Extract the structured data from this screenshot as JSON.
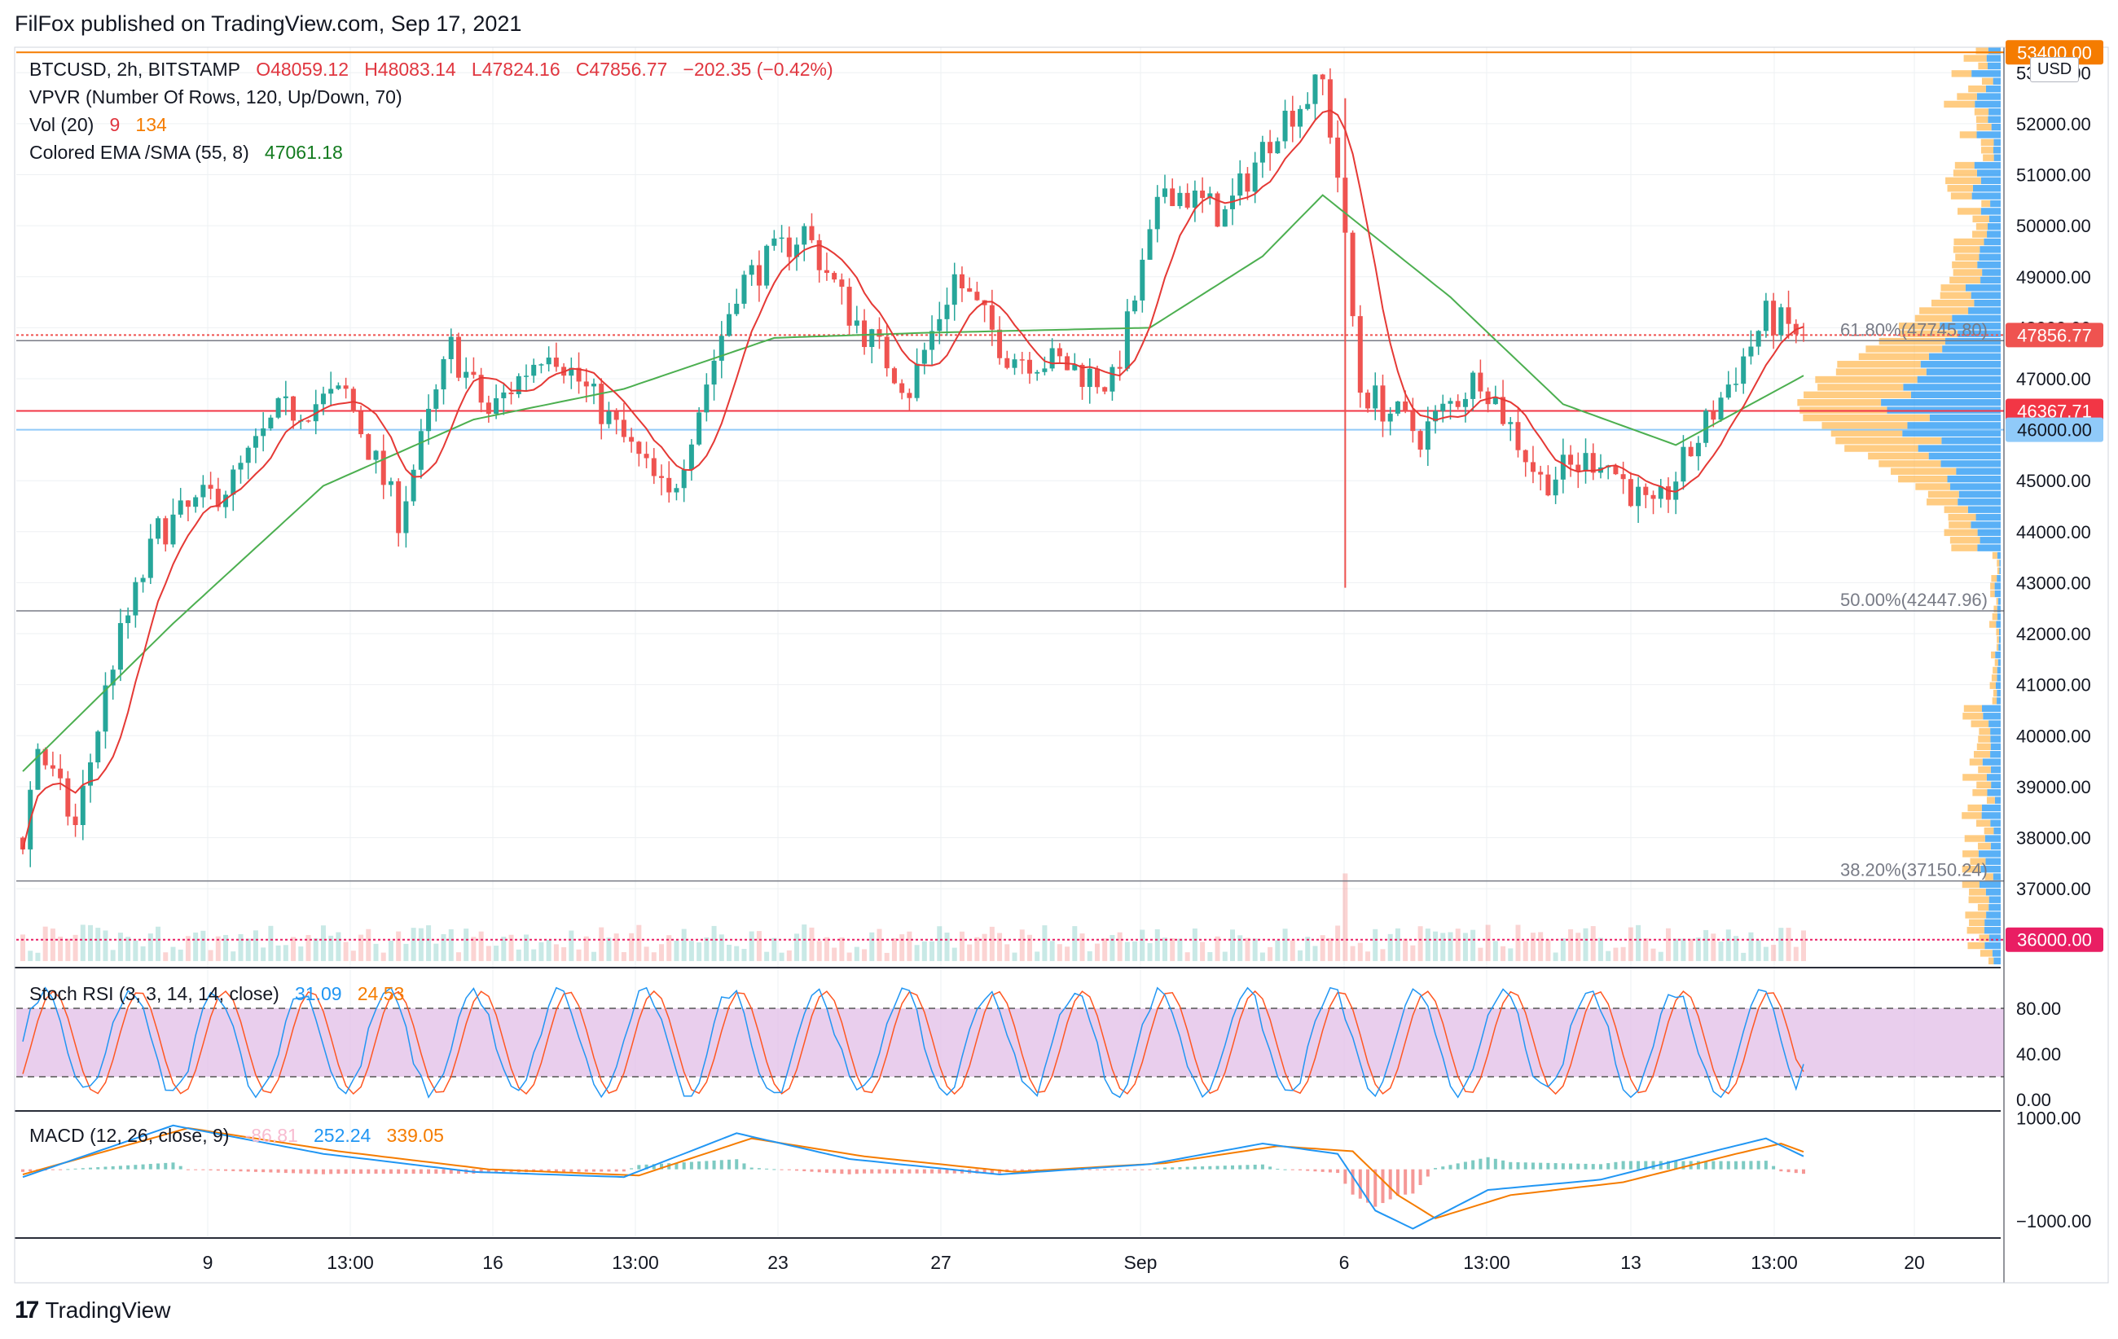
{
  "header": {
    "published": "FilFox published on TradingView.com, Sep 17, 2021"
  },
  "legend": {
    "symbol": "BTCUSD, 2h, BITSTAMP",
    "open": "O48059.12",
    "high": "H48083.14",
    "low": "L47824.16",
    "close": "C47856.77",
    "change": "−202.35 (−0.42%)",
    "vpvr": "VPVR (Number Of Rows, 120, Up/Down, 70)",
    "vol_label": "Vol (20)",
    "vol_a": "9",
    "vol_b": "134",
    "ema_label": "Colored EMA /SMA (55, 8)",
    "ema_value": "47061.18",
    "stoch_label": "Stoch RSI (3, 3, 14, 14, close)",
    "stoch_k": "31.09",
    "stoch_d": "24.53",
    "macd_label": "MACD (12, 26, close, 9)",
    "macd_hist": "-86.81",
    "macd_line": "252.24",
    "macd_signal": "339.05"
  },
  "currency": "USD",
  "brand": "TradingView",
  "colors": {
    "up": "#26a69a",
    "down": "#ef5350",
    "ema": "#4caf50",
    "sma": "#e53935",
    "vpvr_up": "#2196f3",
    "vpvr_down": "#ffb74d",
    "stoch_k": "#2196f3",
    "stoch_d": "#ff5722",
    "stoch_band": "#e1bee7",
    "macd_line": "#2196f3",
    "macd_signal": "#f57c00"
  },
  "chart_data": [
    {
      "type": "candlestick",
      "name": "BTCUSD 2h price",
      "ylim": [
        35500,
        53500
      ],
      "y_ticks": [
        "37000.00",
        "38000.00",
        "39000.00",
        "40000.00",
        "41000.00",
        "42000.00",
        "43000.00",
        "44000.00",
        "45000.00",
        "46000.00",
        "47000.00",
        "48000.00",
        "49000.00",
        "50000.00",
        "51000.00",
        "52000.00",
        "53000.00"
      ],
      "x_ticks": [
        "9",
        "13:00",
        "16",
        "13:00",
        "23",
        "27",
        "Sep",
        "6",
        "13:00",
        "13",
        "13:00",
        "20"
      ],
      "price_labels": [
        {
          "text": "53400.00",
          "value": 53400,
          "color": "#f57c00"
        },
        {
          "text": "47856.77",
          "value": 47856.77,
          "color": "#ef5350"
        },
        {
          "text": "46367.71",
          "value": 46367.71,
          "color": "#f23645"
        },
        {
          "text": "46000.00",
          "value": 46000,
          "color": "#90caf9"
        },
        {
          "text": "36000.00",
          "value": 36000,
          "color": "#e91e63"
        }
      ],
      "fib_levels": [
        {
          "text": "61.80%(47745.80)",
          "value": 47745.8
        },
        {
          "text": "50.00%(42447.96)",
          "value": 42447.96
        },
        {
          "text": "38.20%(37150.24)",
          "value": 37150.24
        }
      ],
      "key_points": [
        {
          "t": 0,
          "price": 38000
        },
        {
          "t": 2,
          "price": 39800
        },
        {
          "t": 7,
          "price": 38200
        },
        {
          "t": 12,
          "price": 41500
        },
        {
          "t": 18,
          "price": 44000
        },
        {
          "t": 28,
          "price": 45000
        },
        {
          "t": 34,
          "price": 46300
        },
        {
          "t": 43,
          "price": 46700
        },
        {
          "t": 50,
          "price": 44300
        },
        {
          "t": 57,
          "price": 47600
        },
        {
          "t": 62,
          "price": 46300
        },
        {
          "t": 70,
          "price": 47700
        },
        {
          "t": 78,
          "price": 46200
        },
        {
          "t": 86,
          "price": 44600
        },
        {
          "t": 95,
          "price": 48800
        },
        {
          "t": 104,
          "price": 49900
        },
        {
          "t": 110,
          "price": 48300
        },
        {
          "t": 118,
          "price": 46800
        },
        {
          "t": 124,
          "price": 49000
        },
        {
          "t": 131,
          "price": 47500
        },
        {
          "t": 138,
          "price": 47300
        },
        {
          "t": 145,
          "price": 46900
        },
        {
          "t": 152,
          "price": 50800
        },
        {
          "t": 160,
          "price": 50200
        },
        {
          "t": 167,
          "price": 52000
        },
        {
          "t": 173,
          "price": 52800
        },
        {
          "t": 175,
          "price": 51000
        },
        {
          "t": 178,
          "price": 46800
        },
        {
          "t": 186,
          "price": 45900
        },
        {
          "t": 194,
          "price": 47100
        },
        {
          "t": 202,
          "price": 45000
        },
        {
          "t": 210,
          "price": 45500
        },
        {
          "t": 217,
          "price": 44300
        },
        {
          "t": 224,
          "price": 46100
        },
        {
          "t": 232,
          "price": 48200
        },
        {
          "t": 237,
          "price": 47856.77
        }
      ],
      "ema_55": [
        {
          "t": 0,
          "price": 39300
        },
        {
          "t": 20,
          "price": 42200
        },
        {
          "t": 40,
          "price": 44900
        },
        {
          "t": 60,
          "price": 46200
        },
        {
          "t": 80,
          "price": 46800
        },
        {
          "t": 100,
          "price": 47800
        },
        {
          "t": 120,
          "price": 47900
        },
        {
          "t": 150,
          "price": 48000
        },
        {
          "t": 165,
          "price": 49400
        },
        {
          "t": 173,
          "price": 50600
        },
        {
          "t": 190,
          "price": 48600
        },
        {
          "t": 205,
          "price": 46500
        },
        {
          "t": 220,
          "price": 45700
        },
        {
          "t": 237,
          "price": 47061.18
        }
      ]
    },
    {
      "type": "line",
      "name": "Stoch RSI",
      "ylim": [
        0,
        100
      ],
      "y_ticks": [
        "0.00",
        "40.00",
        "80.00"
      ],
      "bands": [
        20,
        80
      ],
      "series": [
        {
          "name": "K",
          "last": 31.09
        },
        {
          "name": "D",
          "last": 24.53
        }
      ]
    },
    {
      "type": "line",
      "name": "MACD",
      "ylim": [
        -1300,
        1100
      ],
      "y_ticks": [
        "1000.00",
        "−1000.00"
      ],
      "series": [
        {
          "name": "MACD",
          "points": [
            [
              0,
              -150
            ],
            [
              20,
              850
            ],
            [
              40,
              300
            ],
            [
              60,
              -50
            ],
            [
              80,
              -150
            ],
            [
              95,
              700
            ],
            [
              110,
              200
            ],
            [
              130,
              -100
            ],
            [
              150,
              100
            ],
            [
              165,
              500
            ],
            [
              175,
              300
            ],
            [
              180,
              -800
            ],
            [
              185,
              -1150
            ],
            [
              195,
              -400
            ],
            [
              210,
              -200
            ],
            [
              225,
              350
            ],
            [
              232,
              600
            ],
            [
              237,
              252.24
            ]
          ]
        },
        {
          "name": "Signal",
          "points": [
            [
              0,
              -100
            ],
            [
              22,
              800
            ],
            [
              42,
              350
            ],
            [
              62,
              0
            ],
            [
              82,
              -120
            ],
            [
              97,
              600
            ],
            [
              112,
              250
            ],
            [
              132,
              -50
            ],
            [
              152,
              120
            ],
            [
              167,
              450
            ],
            [
              177,
              350
            ],
            [
              183,
              -500
            ],
            [
              188,
              -950
            ],
            [
              198,
              -500
            ],
            [
              213,
              -250
            ],
            [
              228,
              300
            ],
            [
              234,
              500
            ],
            [
              237,
              339.05
            ]
          ]
        }
      ]
    }
  ]
}
